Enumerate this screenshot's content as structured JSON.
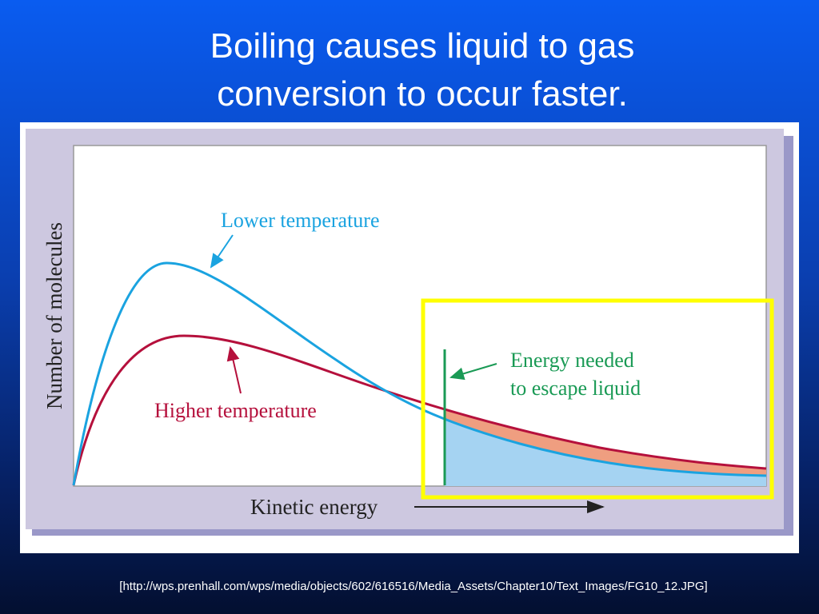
{
  "slide": {
    "title": [
      "Boiling causes liquid to gas",
      "conversion to occur faster."
    ],
    "figure": {
      "y_axis_label": "Number of molecules",
      "x_axis_label": "Kinetic energy",
      "lower_curve_label": "Lower temperature",
      "higher_curve_label": "Higher temperature",
      "threshold_label": [
        "Energy needed",
        "to escape liquid"
      ]
    },
    "caption": "[http://wps.prenhall.com/wps/media/objects/602/616516/Media_Assets/Chapter10/Text_Images/FG10_12.JPG]"
  }
}
